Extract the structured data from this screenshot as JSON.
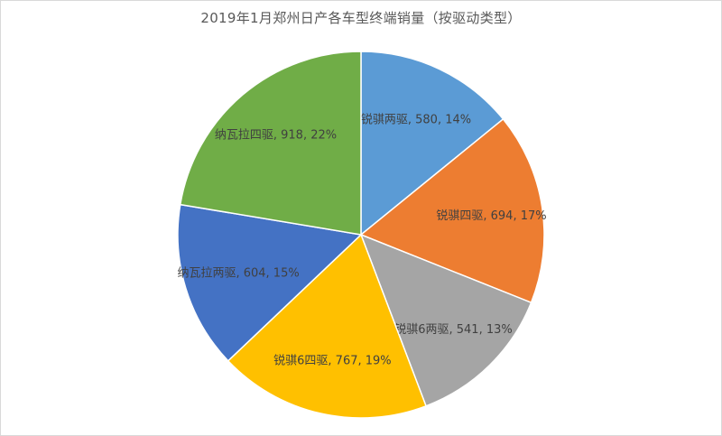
{
  "chart_data": {
    "type": "pie",
    "title": "2019年1月郑州日产各车型终端销量（按驱动类型）",
    "slices": [
      {
        "label": "锐骐两驱",
        "value": 580,
        "percent": "14%",
        "color": "#5b9bd5"
      },
      {
        "label": "锐骐四驱",
        "value": 694,
        "percent": "17%",
        "color": "#ed7d31"
      },
      {
        "label": "锐骐6两驱",
        "value": 541,
        "percent": "13%",
        "color": "#a5a5a5"
      },
      {
        "label": "锐骐6四驱",
        "value": 767,
        "percent": "19%",
        "color": "#ffc000"
      },
      {
        "label": "纳瓦拉两驱",
        "value": 604,
        "percent": "15%",
        "color": "#4472c4"
      },
      {
        "label": "纳瓦拉四驱",
        "value": 918,
        "percent": "22%",
        "color": "#70ad47"
      }
    ],
    "start_angle": "12 o'clock",
    "direction": "clockwise",
    "legend": "none",
    "data_labels": "category, value, percentage"
  }
}
